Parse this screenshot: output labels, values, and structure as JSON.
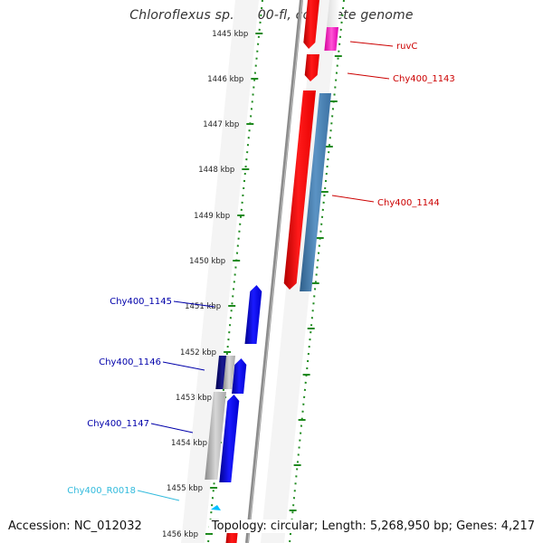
{
  "title": "Chloroflexus sp. Y-400-fl, complete genome",
  "accession": "Accession: NC_012032",
  "topology": "Topology: circular; Length: 5,268,950 bp; Genes: 4,217",
  "colors": {
    "backbone": "#8c8c8c",
    "ruler": "#1f8a1f",
    "forward_gene": "#ff0000",
    "forward_gene_dark": "#4682b4",
    "reverse_gene": "#0000ff",
    "reverse_gene_dark": "#000080",
    "rna": "#00bfff",
    "ruvC": "#ff33cc",
    "gene_label_forward": "#cc0000",
    "gene_label_reverse": "#0000aa",
    "rna_label": "#33bbdd"
  },
  "ruler": {
    "ticks": [
      "1445 kbp",
      "1446 kbp",
      "1447 kbp",
      "1448 kbp",
      "1449 kbp",
      "1450 kbp",
      "1451 kbp",
      "1452 kbp",
      "1453 kbp",
      "1454 kbp",
      "1455 kbp",
      "1456 kbp"
    ]
  },
  "genes": [
    {
      "name": "ruvC",
      "strand": "forward"
    },
    {
      "name": "Chy400_1143",
      "strand": "forward"
    },
    {
      "name": "Chy400_1144",
      "strand": "forward"
    },
    {
      "name": "Chy400_1145",
      "strand": "reverse"
    },
    {
      "name": "Chy400_1146",
      "strand": "reverse"
    },
    {
      "name": "Chy400_1147",
      "strand": "reverse"
    },
    {
      "name": "Chy400_R0018",
      "strand": "reverse"
    }
  ]
}
